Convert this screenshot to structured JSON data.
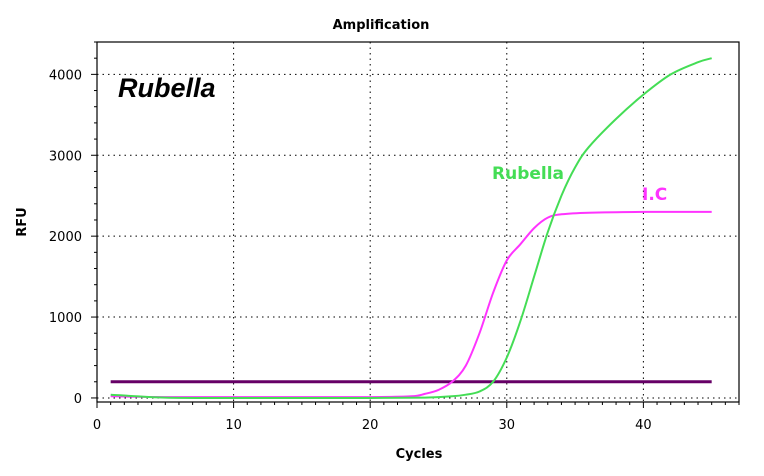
{
  "chart_data": {
    "type": "line",
    "title": "Amplification",
    "inset_title": "Rubella",
    "xlabel": "Cycles",
    "ylabel": "RFU",
    "xlim": [
      0,
      47
    ],
    "ylim": [
      -50,
      4400
    ],
    "xticks": [
      0,
      10,
      20,
      30,
      40
    ],
    "yticks": [
      0,
      1000,
      2000,
      3000,
      4000
    ],
    "grid": true,
    "colors": {
      "rubella": "#44dd55",
      "ic": "#ff33ff",
      "threshold": "#660066"
    },
    "series": [
      {
        "name": "Rubella",
        "color": "#44dd55",
        "x": [
          1,
          5,
          10,
          15,
          20,
          24,
          26,
          27,
          28,
          29,
          30,
          31,
          32,
          33,
          34,
          35,
          36,
          38,
          40,
          42,
          44,
          45
        ],
        "y": [
          40,
          5,
          0,
          0,
          0,
          5,
          20,
          40,
          80,
          200,
          500,
          950,
          1500,
          2050,
          2500,
          2850,
          3100,
          3450,
          3750,
          4000,
          4150,
          4200
        ]
      },
      {
        "name": "I.C",
        "color": "#ff33ff",
        "x": [
          1,
          5,
          10,
          15,
          20,
          23,
          24,
          25,
          26,
          27,
          28,
          29,
          30,
          31,
          32,
          33,
          34,
          36,
          40,
          45
        ],
        "y": [
          20,
          10,
          10,
          10,
          10,
          20,
          50,
          100,
          200,
          400,
          800,
          1300,
          1700,
          1900,
          2100,
          2230,
          2270,
          2290,
          2300,
          2300
        ]
      }
    ],
    "threshold": {
      "y": 200,
      "x_start": 1,
      "x_end": 45,
      "color": "#660066"
    }
  }
}
